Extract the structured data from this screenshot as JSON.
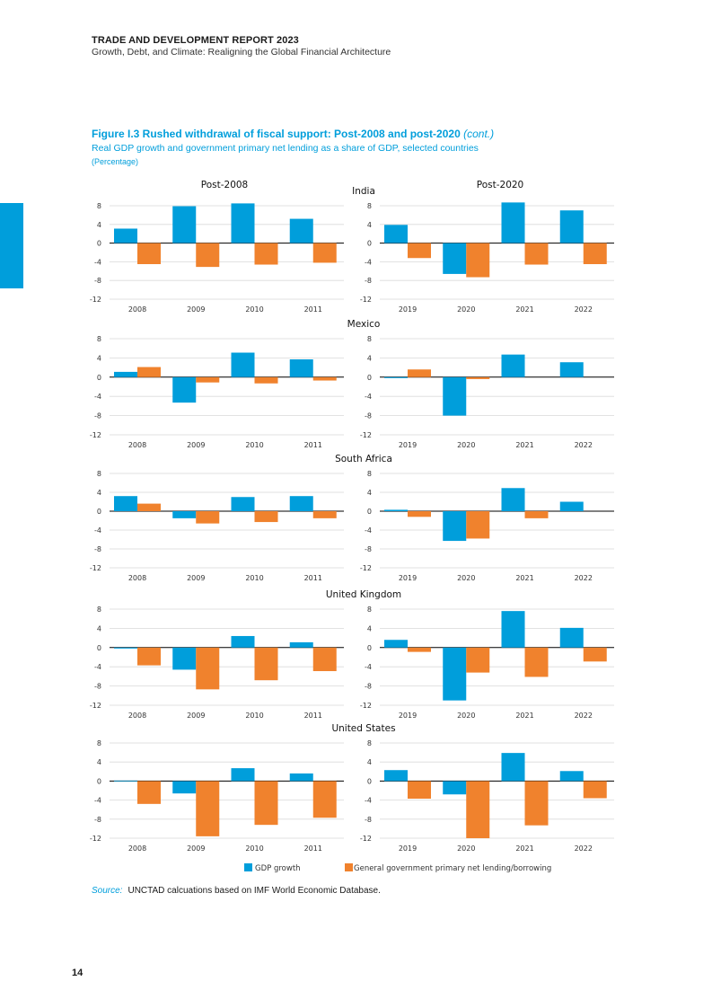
{
  "header": {
    "title": "TRADE AND DEVELOPMENT REPORT 2023",
    "subtitle": "Growth, Debt, and Climate: Realigning the Global Financial Architecture"
  },
  "figure": {
    "title": "Figure I.3  Rushed withdrawal of fiscal support: Post-2008 and post-2020",
    "title_cont": "(cont.)",
    "subtitle": "Real GDP growth and government primary net lending as a share of GDP, selected countries",
    "unit": "(Percentage)"
  },
  "colors": {
    "gdp": "#009edb",
    "lending": "#f0822d",
    "grid": "#d9d9d9",
    "text": "#333333"
  },
  "chart_data": {
    "type": "bar",
    "panel_titles": [
      "Post-2008",
      "Post-2020"
    ],
    "yticks": [
      8,
      4,
      0,
      -4,
      -8,
      -12
    ],
    "ylim": [
      -12,
      8
    ],
    "legend": [
      "GDP growth",
      "General government primary net lending/borrowing"
    ],
    "legend_position": "bottom",
    "countries": [
      {
        "name": "India",
        "post2008": {
          "categories": [
            "2008",
            "2009",
            "2010",
            "2011"
          ],
          "gdp": [
            3.1,
            7.9,
            8.5,
            5.2
          ],
          "lending": [
            -4.5,
            -5.1,
            -4.6,
            -4.2
          ]
        },
        "post2020": {
          "categories": [
            "2019",
            "2020",
            "2021",
            "2022"
          ],
          "gdp": [
            3.9,
            -6.6,
            8.7,
            7.0
          ],
          "lending": [
            -3.2,
            -7.3,
            -4.6,
            -4.5
          ]
        }
      },
      {
        "name": "Mexico",
        "post2008": {
          "categories": [
            "2008",
            "2009",
            "2010",
            "2011"
          ],
          "gdp": [
            1.1,
            -5.3,
            5.1,
            3.7
          ],
          "lending": [
            2.1,
            -1.1,
            -1.3,
            -0.7
          ]
        },
        "post2020": {
          "categories": [
            "2019",
            "2020",
            "2021",
            "2022"
          ],
          "gdp": [
            -0.2,
            -8.0,
            4.7,
            3.1
          ],
          "lending": [
            1.6,
            -0.4,
            0.0,
            0.0
          ]
        }
      },
      {
        "name": "South Africa",
        "post2008": {
          "categories": [
            "2008",
            "2009",
            "2010",
            "2011"
          ],
          "gdp": [
            3.2,
            -1.5,
            3.0,
            3.2
          ],
          "lending": [
            1.6,
            -2.6,
            -2.3,
            -1.5
          ]
        },
        "post2020": {
          "categories": [
            "2019",
            "2020",
            "2021",
            "2022"
          ],
          "gdp": [
            0.3,
            -6.3,
            4.9,
            2.0
          ],
          "lending": [
            -1.2,
            -5.8,
            -1.5,
            0.0
          ]
        }
      },
      {
        "name": "United Kingdom",
        "post2008": {
          "categories": [
            "2008",
            "2009",
            "2010",
            "2011"
          ],
          "gdp": [
            -0.2,
            -4.6,
            2.4,
            1.1
          ],
          "lending": [
            -3.7,
            -8.7,
            -6.8,
            -4.9
          ]
        },
        "post2020": {
          "categories": [
            "2019",
            "2020",
            "2021",
            "2022"
          ],
          "gdp": [
            1.6,
            -11.0,
            7.6,
            4.1
          ],
          "lending": [
            -0.9,
            -5.2,
            -6.1,
            -2.9
          ]
        }
      },
      {
        "name": "United States",
        "post2008": {
          "categories": [
            "2008",
            "2009",
            "2010",
            "2011"
          ],
          "gdp": [
            0.1,
            -2.6,
            2.7,
            1.6
          ],
          "lending": [
            -4.8,
            -11.6,
            -9.2,
            -7.7
          ]
        },
        "post2020": {
          "categories": [
            "2019",
            "2020",
            "2021",
            "2022"
          ],
          "gdp": [
            2.3,
            -2.8,
            5.9,
            2.1
          ],
          "lending": [
            -3.7,
            -12.0,
            -9.3,
            -3.6
          ]
        }
      }
    ]
  },
  "source": {
    "label": "Source:",
    "text": "UNCTAD calcuations based on IMF World Economic Database."
  },
  "page_number": "14"
}
